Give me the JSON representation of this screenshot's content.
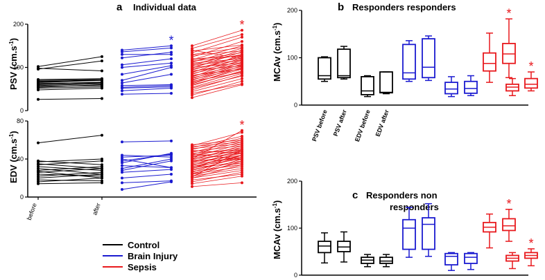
{
  "colors": {
    "control": "#000000",
    "brain_injury": "#1a1ad0",
    "sepsis": "#e8181c"
  },
  "chart_data": [
    {
      "type": "line",
      "panel": "a",
      "title": "Individual data",
      "ylabel": "PSV (cm.s-1)",
      "ylim": [
        0,
        200
      ],
      "yticks": [
        "0",
        "100",
        "200"
      ],
      "significance": {
        "brain_injury": "*",
        "sepsis": "*"
      },
      "groups": [
        {
          "name": "Control",
          "color_key": "control",
          "pairs": [
            [
              26,
              28
            ],
            [
              48,
              52
            ],
            [
              52,
              55
            ],
            [
              54,
              60
            ],
            [
              56,
              58
            ],
            [
              58,
              62
            ],
            [
              60,
              64
            ],
            [
              62,
              66
            ],
            [
              63,
              65
            ],
            [
              65,
              70
            ],
            [
              66,
              72
            ],
            [
              68,
              70
            ],
            [
              70,
              72
            ],
            [
              72,
              74
            ],
            [
              96,
              115
            ],
            [
              98,
              92
            ],
            [
              102,
              125
            ]
          ]
        },
        {
          "name": "Brain Injury",
          "color_key": "brain_injury",
          "pairs": [
            [
              38,
              40
            ],
            [
              46,
              52
            ],
            [
              52,
              55
            ],
            [
              54,
              58
            ],
            [
              58,
              60
            ],
            [
              64,
              84
            ],
            [
              70,
              100
            ],
            [
              84,
              104
            ],
            [
              100,
              110
            ],
            [
              106,
              120
            ],
            [
              122,
              135
            ],
            [
              130,
              130
            ],
            [
              136,
              145
            ],
            [
              140,
              150
            ]
          ]
        },
        {
          "name": "Sepsis",
          "color_key": "sepsis",
          "pairs": [
            [
              30,
              60
            ],
            [
              36,
              68
            ],
            [
              40,
              62
            ],
            [
              44,
              74
            ],
            [
              48,
              82
            ],
            [
              52,
              80
            ],
            [
              54,
              86
            ],
            [
              58,
              92
            ],
            [
              60,
              90
            ],
            [
              62,
              100
            ],
            [
              64,
              96
            ],
            [
              66,
              104
            ],
            [
              68,
              88
            ],
            [
              70,
              108
            ],
            [
              72,
              98
            ],
            [
              74,
              112
            ],
            [
              76,
              102
            ],
            [
              78,
              118
            ],
            [
              80,
              106
            ],
            [
              82,
              96
            ],
            [
              84,
              122
            ],
            [
              86,
              110
            ],
            [
              88,
              130
            ],
            [
              90,
              114
            ],
            [
              92,
              104
            ],
            [
              94,
              126
            ],
            [
              96,
              118
            ],
            [
              98,
              136
            ],
            [
              100,
              110
            ],
            [
              102,
              124
            ],
            [
              104,
              140
            ],
            [
              106,
              116
            ],
            [
              108,
              130
            ],
            [
              110,
              120
            ],
            [
              112,
              144
            ],
            [
              114,
              128
            ],
            [
              116,
              134
            ],
            [
              118,
              150
            ],
            [
              120,
              126
            ],
            [
              124,
              160
            ],
            [
              128,
              138
            ],
            [
              130,
              146
            ],
            [
              134,
              170
            ],
            [
              138,
              152
            ],
            [
              140,
              120
            ],
            [
              144,
              176
            ],
            [
              150,
              186
            ]
          ]
        }
      ]
    },
    {
      "type": "line",
      "panel": "a-lower",
      "ylabel": "EDV (cm.s-1)",
      "ylim": [
        0,
        80
      ],
      "yticks": [
        "0",
        "40",
        "80"
      ],
      "xticklabels": [
        "before",
        "after"
      ],
      "significance": {
        "sepsis": "*"
      },
      "groups": [
        {
          "name": "Control",
          "color_key": "control",
          "pairs": [
            [
              14,
              15
            ],
            [
              16,
              20
            ],
            [
              18,
              17
            ],
            [
              20,
              24
            ],
            [
              22,
              26
            ],
            [
              24,
              22
            ],
            [
              26,
              30
            ],
            [
              27,
              20
            ],
            [
              28,
              32
            ],
            [
              30,
              24
            ],
            [
              32,
              28
            ],
            [
              34,
              38
            ],
            [
              35,
              30
            ],
            [
              37,
              40
            ],
            [
              38,
              34
            ],
            [
              57,
              65
            ]
          ]
        },
        {
          "name": "Brain Injury",
          "color_key": "brain_injury",
          "pairs": [
            [
              8,
              16
            ],
            [
              15,
              17
            ],
            [
              20,
              24
            ],
            [
              26,
              29
            ],
            [
              28,
              38
            ],
            [
              30,
              40
            ],
            [
              33,
              31
            ],
            [
              36,
              46
            ],
            [
              38,
              45
            ],
            [
              40,
              31
            ],
            [
              42,
              44
            ],
            [
              44,
              42
            ],
            [
              58,
              59
            ]
          ]
        },
        {
          "name": "Sepsis",
          "color_key": "sepsis",
          "pairs": [
            [
              11,
              15
            ],
            [
              14,
              22
            ],
            [
              16,
              26
            ],
            [
              18,
              24
            ],
            [
              20,
              28
            ],
            [
              20,
              34
            ],
            [
              22,
              30
            ],
            [
              22,
              38
            ],
            [
              24,
              32
            ],
            [
              24,
              40
            ],
            [
              25,
              36
            ],
            [
              26,
              44
            ],
            [
              27,
              34
            ],
            [
              28,
              42
            ],
            [
              29,
              38
            ],
            [
              30,
              48
            ],
            [
              31,
              36
            ],
            [
              32,
              44
            ],
            [
              32,
              40
            ],
            [
              33,
              50
            ],
            [
              34,
              42
            ],
            [
              35,
              46
            ],
            [
              36,
              52
            ],
            [
              37,
              44
            ],
            [
              38,
              48
            ],
            [
              38,
              40
            ],
            [
              39,
              54
            ],
            [
              40,
              46
            ],
            [
              41,
              50
            ],
            [
              42,
              56
            ],
            [
              43,
              48
            ],
            [
              44,
              52
            ],
            [
              45,
              58
            ],
            [
              46,
              50
            ],
            [
              47,
              60
            ],
            [
              48,
              54
            ],
            [
              49,
              46
            ],
            [
              50,
              62
            ],
            [
              51,
              56
            ],
            [
              52,
              64
            ],
            [
              53,
              58
            ],
            [
              54,
              68
            ],
            [
              55,
              60
            ],
            [
              21,
              50
            ],
            [
              40,
              70
            ],
            [
              30,
              44
            ],
            [
              45,
              40
            ]
          ]
        }
      ]
    },
    {
      "type": "box",
      "panel": "b",
      "title": "Responders responders",
      "ylabel": "MCAv (cm.s-1)",
      "ylim": [
        0,
        200
      ],
      "yticks": [
        "0",
        "100",
        "200"
      ],
      "categories": [
        "PSV before",
        "PSV after",
        "EDV before",
        "EDV after"
      ],
      "boxes": [
        {
          "group": "control",
          "min": 50,
          "q1": 55,
          "median": 62,
          "q3": 100,
          "max": 102
        },
        {
          "group": "control",
          "min": 55,
          "q1": 58,
          "median": 62,
          "q3": 118,
          "max": 124
        },
        {
          "group": "control",
          "min": 18,
          "q1": 22,
          "median": 30,
          "q3": 60,
          "max": 62
        },
        {
          "group": "control",
          "min": 24,
          "q1": 26,
          "median": 27,
          "q3": 70,
          "max": 70
        },
        {
          "group": "brain_injury",
          "min": 50,
          "q1": 55,
          "median": 68,
          "q3": 128,
          "max": 136
        },
        {
          "group": "brain_injury",
          "min": 52,
          "q1": 58,
          "median": 80,
          "q3": 140,
          "max": 146
        },
        {
          "group": "brain_injury",
          "min": 18,
          "q1": 24,
          "median": 34,
          "q3": 48,
          "max": 60
        },
        {
          "group": "brain_injury",
          "min": 20,
          "q1": 25,
          "median": 35,
          "q3": 50,
          "max": 62
        },
        {
          "group": "sepsis",
          "min": 48,
          "q1": 72,
          "median": 88,
          "q3": 110,
          "max": 152
        },
        {
          "group": "sepsis",
          "min": 58,
          "q1": 88,
          "median": 108,
          "q3": 130,
          "max": 182,
          "star": "*"
        },
        {
          "group": "sepsis",
          "min": 20,
          "q1": 30,
          "median": 38,
          "q3": 44,
          "max": 56
        },
        {
          "group": "sepsis",
          "min": 30,
          "q1": 36,
          "median": 44,
          "q3": 56,
          "max": 70,
          "star": "*"
        }
      ]
    },
    {
      "type": "box",
      "panel": "c",
      "title": "Responders non responders",
      "ylabel": "MCAv (cm.s-1)",
      "ylim": [
        0,
        200
      ],
      "yticks": [
        "0",
        "100",
        "200"
      ],
      "boxes": [
        {
          "group": "control",
          "min": 26,
          "q1": 48,
          "median": 62,
          "q3": 72,
          "max": 90
        },
        {
          "group": "control",
          "min": 28,
          "q1": 50,
          "median": 60,
          "q3": 72,
          "max": 92
        },
        {
          "group": "control",
          "min": 18,
          "q1": 25,
          "median": 32,
          "q3": 38,
          "max": 44
        },
        {
          "group": "control",
          "min": 18,
          "q1": 25,
          "median": 30,
          "q3": 38,
          "max": 44
        },
        {
          "group": "brain_injury",
          "min": 38,
          "q1": 55,
          "median": 100,
          "q3": 118,
          "max": 144
        },
        {
          "group": "brain_injury",
          "min": 40,
          "q1": 55,
          "median": 108,
          "q3": 122,
          "max": 152
        },
        {
          "group": "brain_injury",
          "min": 10,
          "q1": 22,
          "median": 40,
          "q3": 46,
          "max": 48
        },
        {
          "group": "brain_injury",
          "min": 12,
          "q1": 25,
          "median": 38,
          "q3": 46,
          "max": 48
        },
        {
          "group": "sepsis",
          "min": 58,
          "q1": 92,
          "median": 102,
          "q3": 112,
          "max": 130
        },
        {
          "group": "sepsis",
          "min": 72,
          "q1": 95,
          "median": 105,
          "q3": 120,
          "max": 140,
          "star": "*"
        },
        {
          "group": "sepsis",
          "min": 14,
          "q1": 30,
          "median": 36,
          "q3": 42,
          "max": 48
        },
        {
          "group": "sepsis",
          "min": 20,
          "q1": 36,
          "median": 42,
          "q3": 48,
          "max": 56,
          "star": "*"
        }
      ]
    }
  ],
  "panel_labels": {
    "a_letter": "a",
    "a_title": "Individual data",
    "b_letter": "b",
    "b_title": "Responders responders",
    "c_letter": "c",
    "c_title_1": "Responders non",
    "c_title_2": "responders"
  },
  "axis_labels": {
    "psv_main": "PSV (cm.s",
    "edv_main": "EDV (cm.s",
    "mcav_main": "MCAv (cm.s",
    "unit_sup": "-1",
    "close": ")"
  },
  "legend": [
    {
      "label": "Control",
      "color_key": "control"
    },
    {
      "label": "Brain Injury",
      "color_key": "brain_injury"
    },
    {
      "label": "Sepsis",
      "color_key": "sepsis"
    }
  ]
}
